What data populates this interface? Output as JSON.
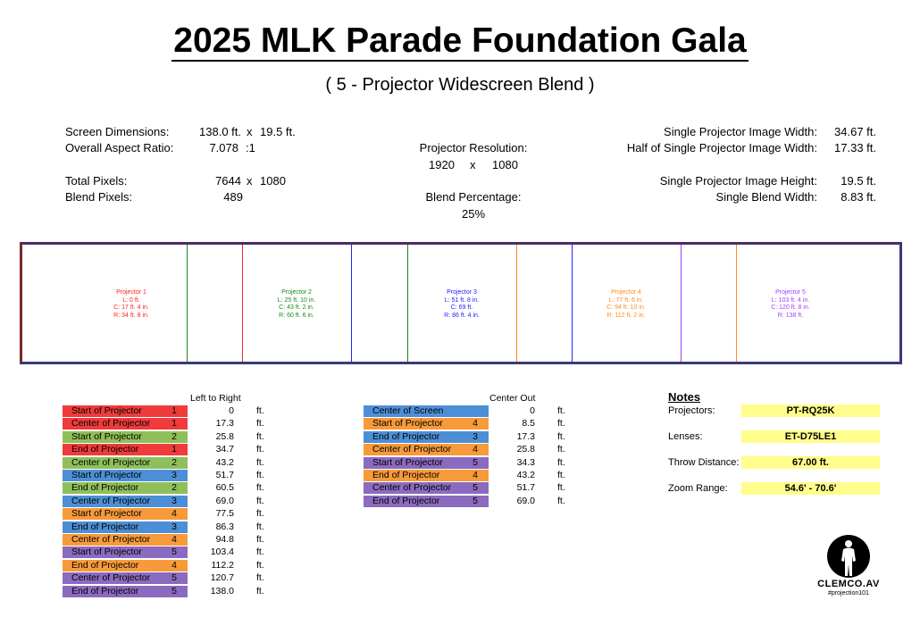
{
  "title": "2025 MLK Parade Foundation Gala",
  "subtitle": "( 5 - Projector Widescreen Blend )",
  "specs": {
    "screen_dim_label": "Screen Dimensions:",
    "screen_w": "138.0 ft.",
    "x1": "x",
    "screen_h": "19.5 ft.",
    "aspect_label": "Overall Aspect Ratio:",
    "aspect_val": "7.078",
    "aspect_suffix": ":1",
    "total_px_label": "Total Pixels:",
    "total_px_w": "7644",
    "x2": "x",
    "total_px_h": "1080",
    "blend_px_label": "Blend Pixels:",
    "blend_px_val": "489",
    "proj_res_label": "Projector Resolution:",
    "proj_res_w": "1920",
    "x3": "x",
    "proj_res_h": "1080",
    "blend_pct_label": "Blend Percentage:",
    "blend_pct_val": "25%",
    "single_w_label": "Single Projector Image Width:",
    "single_w_val": "34.67 ft.",
    "half_w_label": "Half of Single Projector Image Width:",
    "half_w_val": "17.33 ft.",
    "single_h_label": "Single Projector Image Height:",
    "single_h_val": "19.5 ft.",
    "blend_w_label": "Single Blend Width:",
    "blend_w_val": "8.83 ft."
  },
  "projectors": [
    {
      "name": "Projector 1",
      "l": "L: 0 ft.",
      "c": "C: 17 ft. 4 in.",
      "r": "R: 34 ft. 8 in.",
      "color": "#ff2020"
    },
    {
      "name": "Projector 2",
      "l": "L: 25 ft. 10 in.",
      "c": "C: 43 ft. 2 in.",
      "r": "R: 60 ft. 6 in.",
      "color": "#1a8a1a"
    },
    {
      "name": "Projector 3",
      "l": "L: 51 ft. 8 in.",
      "c": "C: 69 ft.",
      "r": "R: 86 ft. 4 in.",
      "color": "#2222ff"
    },
    {
      "name": "Projector 4",
      "l": "L: 77 ft. 6 in.",
      "c": "C: 94 ft. 10 in.",
      "r": "R: 112 ft. 2 in.",
      "color": "#ff8c1a"
    },
    {
      "name": "Projector 5",
      "l": "L: 103 ft. 4 in.",
      "c": "C: 120 ft. 8 in.",
      "r": "R: 138 ft.",
      "color": "#a040ff"
    }
  ],
  "left_table": {
    "header": "Left to Right",
    "rows": [
      {
        "label": "Start of Projector",
        "n": "1",
        "val": "0",
        "unit": "ft.",
        "color": "#ef3b3b"
      },
      {
        "label": "Center of Projector",
        "n": "1",
        "val": "17.3",
        "unit": "ft.",
        "color": "#ef3b3b"
      },
      {
        "label": "Start of Projector",
        "n": "2",
        "val": "25.8",
        "unit": "ft.",
        "color": "#8fbf5a"
      },
      {
        "label": "End of Projector",
        "n": "1",
        "val": "34.7",
        "unit": "ft.",
        "color": "#ef3b3b"
      },
      {
        "label": "Center of Projector",
        "n": "2",
        "val": "43.2",
        "unit": "ft.",
        "color": "#8fbf5a"
      },
      {
        "label": "Start of Projector",
        "n": "3",
        "val": "51.7",
        "unit": "ft.",
        "color": "#4d8fd6"
      },
      {
        "label": "End of Projector",
        "n": "2",
        "val": "60.5",
        "unit": "ft.",
        "color": "#8fbf5a"
      },
      {
        "label": "Center of Projector",
        "n": "3",
        "val": "69.0",
        "unit": "ft.",
        "color": "#4d8fd6"
      },
      {
        "label": "Start of Projector",
        "n": "4",
        "val": "77.5",
        "unit": "ft.",
        "color": "#f79a3a"
      },
      {
        "label": "End of Projector",
        "n": "3",
        "val": "86.3",
        "unit": "ft.",
        "color": "#4d8fd6"
      },
      {
        "label": "Center of Projector",
        "n": "4",
        "val": "94.8",
        "unit": "ft.",
        "color": "#f79a3a"
      },
      {
        "label": "Start of Projector",
        "n": "5",
        "val": "103.4",
        "unit": "ft.",
        "color": "#8b6bbf"
      },
      {
        "label": "End of Projector",
        "n": "4",
        "val": "112.2",
        "unit": "ft.",
        "color": "#f79a3a"
      },
      {
        "label": "Center of Projector",
        "n": "5",
        "val": "120.7",
        "unit": "ft.",
        "color": "#8b6bbf"
      },
      {
        "label": "End of Projector",
        "n": "5",
        "val": "138.0",
        "unit": "ft.",
        "color": "#8b6bbf"
      }
    ]
  },
  "center_table": {
    "header": "Center Out",
    "rows": [
      {
        "label": "Center of Screen",
        "n": "",
        "val": "0",
        "unit": "ft.",
        "color": "#4d8fd6"
      },
      {
        "label": "Start of Projector",
        "n": "4",
        "val": "8.5",
        "unit": "ft.",
        "color": "#f79a3a"
      },
      {
        "label": "End of Projector",
        "n": "3",
        "val": "17.3",
        "unit": "ft.",
        "color": "#4d8fd6"
      },
      {
        "label": "Center of Projector",
        "n": "4",
        "val": "25.8",
        "unit": "ft.",
        "color": "#f79a3a"
      },
      {
        "label": "Start of Projector",
        "n": "5",
        "val": "34.3",
        "unit": "ft.",
        "color": "#8b6bbf"
      },
      {
        "label": "End of Projector",
        "n": "4",
        "val": "43.2",
        "unit": "ft.",
        "color": "#f79a3a"
      },
      {
        "label": "Center of Projector",
        "n": "5",
        "val": "51.7",
        "unit": "ft.",
        "color": "#8b6bbf"
      },
      {
        "label": "End of Projector",
        "n": "5",
        "val": "69.0",
        "unit": "ft.",
        "color": "#8b6bbf"
      }
    ]
  },
  "notes": {
    "header": "Notes",
    "items": [
      {
        "label": "Projectors:",
        "value": "PT-RQ25K"
      },
      {
        "label": "Lenses:",
        "value": "ET-D75LE1"
      },
      {
        "label": "Throw Distance:",
        "value": "67.00 ft."
      },
      {
        "label": "Zoom Range:",
        "value": "54.6' - 70.6'"
      }
    ]
  },
  "logo": {
    "name": "CLEMCO.AV",
    "tag": "#projection101"
  }
}
